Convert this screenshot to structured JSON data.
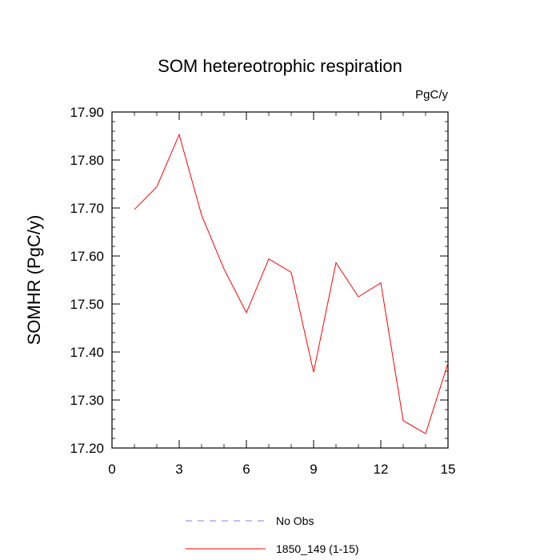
{
  "chart_data": {
    "type": "line",
    "title": "SOM hetereotrophic respiration",
    "units_label": "PgC/y",
    "ylabel": "SOMHR  (PgC/y)",
    "xlabel": "",
    "xlim": [
      0,
      15
    ],
    "ylim": [
      17.2,
      17.9
    ],
    "x_ticks": [
      0,
      3,
      6,
      9,
      12,
      15
    ],
    "y_ticks": [
      17.2,
      17.3,
      17.4,
      17.5,
      17.6,
      17.7,
      17.8,
      17.9
    ],
    "y_tick_labels": [
      "17.20",
      "17.30",
      "17.40",
      "17.50",
      "17.60",
      "17.70",
      "17.80",
      "17.90"
    ],
    "grid": false,
    "legend_position": "bottom",
    "series": [
      {
        "name": "1850_149 (1-15)",
        "color": "#ff0000",
        "style": "solid",
        "x": [
          1,
          2,
          3,
          4,
          5,
          6,
          7,
          8,
          9,
          10,
          11,
          12,
          13,
          14,
          15
        ],
        "values": [
          17.697,
          17.744,
          17.853,
          17.685,
          17.573,
          17.482,
          17.594,
          17.566,
          17.358,
          17.586,
          17.515,
          17.544,
          17.257,
          17.23,
          17.377
        ]
      }
    ],
    "legend": [
      {
        "label": "No Obs",
        "color": "#8080ff",
        "style": "dashed"
      },
      {
        "label": "1850_149 (1-15)",
        "color": "#ff0000",
        "style": "solid"
      }
    ]
  }
}
